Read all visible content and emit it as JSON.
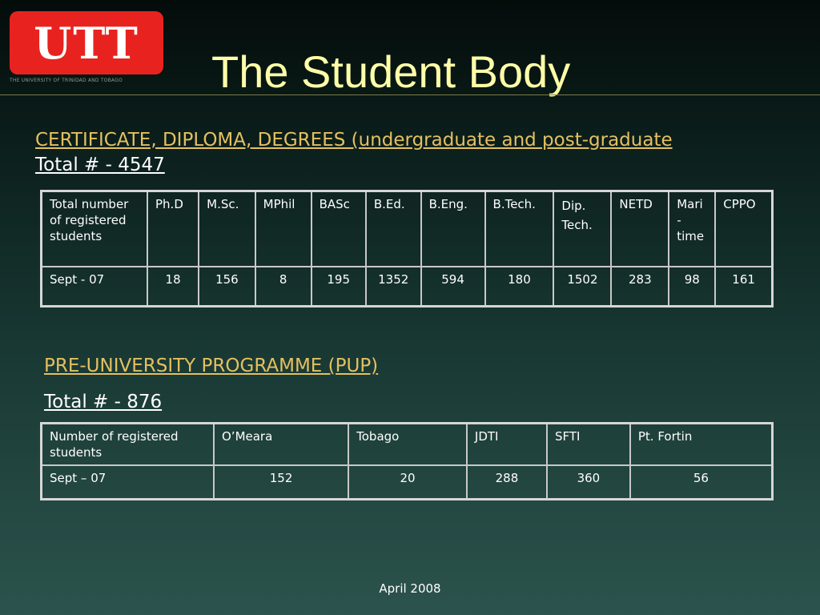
{
  "logo": {
    "text": "UTT",
    "subtitle": "THE UNIVERSITY OF TRINIDAD AND TOBAGO"
  },
  "title": "The Student Body",
  "section1": {
    "heading": "CERTIFICATE, DIPLOMA, DEGREES (undergraduate and post-graduate",
    "total": "Total # - 4547",
    "table": {
      "header": [
        "Total number of registered students",
        "Ph.D",
        "M.Sc.",
        "MPhil",
        "BASc",
        "B.Ed.",
        "B.Eng.",
        "B.Tech.",
        "Dip. Tech.",
        "NETD",
        "Mari - time",
        "CPPO"
      ],
      "row": [
        "Sept - 07",
        "18",
        "156",
        "8",
        "195",
        "1352",
        "594",
        "180",
        "1502",
        "283",
        "98",
        "161"
      ]
    }
  },
  "section2": {
    "heading": "PRE-UNIVERSITY PROGRAMME (PUP)",
    "total": "Total # - 876",
    "table": {
      "header": [
        "Number of registered students",
        "O’Meara",
        "Tobago",
        "JDTI",
        "SFTI",
        "Pt. Fortin"
      ],
      "row": [
        "Sept – 07",
        "152",
        "20",
        "288",
        "360",
        "56"
      ]
    }
  },
  "footer": "April 2008",
  "colors": {
    "title": "#ffffa8",
    "heading": "#e4c060",
    "logo_red": "#e8231f"
  }
}
